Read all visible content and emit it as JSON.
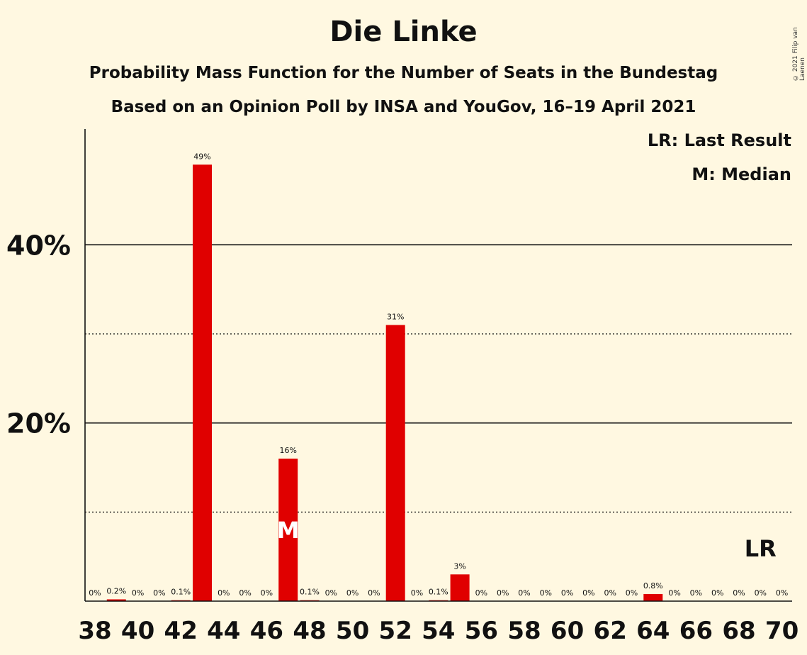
{
  "title": "Die Linke",
  "subtitle1": "Probability Mass Function for the Number of Seats in the Bundestag",
  "subtitle2": "Based on an Opinion Poll by INSA and YouGov, 16–19 April 2021",
  "copyright": "© 2021 Filip van Laenen",
  "legend": {
    "last_result": "LR: Last Result",
    "median": "M: Median"
  },
  "colors": {
    "bar": "#E00000",
    "background": "#FFF8E1",
    "axis": "#111111"
  },
  "chart_data": {
    "type": "bar",
    "title": "Die Linke",
    "xlabel": "",
    "ylabel": "",
    "ylim": [
      0,
      53
    ],
    "y_ticks": [
      {
        "value": 20,
        "label": "20%",
        "style": "solid"
      },
      {
        "value": 40,
        "label": "40%",
        "style": "solid"
      }
    ],
    "y_minor_gridlines": [
      10,
      30
    ],
    "x_tick_labels": [
      "38",
      "40",
      "42",
      "44",
      "46",
      "48",
      "50",
      "52",
      "54",
      "56",
      "58",
      "60",
      "62",
      "64",
      "66",
      "68",
      "70"
    ],
    "categories": [
      38,
      39,
      40,
      41,
      42,
      43,
      44,
      45,
      46,
      47,
      48,
      49,
      50,
      51,
      52,
      53,
      54,
      55,
      56,
      57,
      58,
      59,
      60,
      61,
      62,
      63,
      64,
      65,
      66,
      67,
      68,
      69,
      70
    ],
    "values": [
      0,
      0.2,
      0,
      0,
      0.1,
      49,
      0,
      0,
      0,
      16,
      0.1,
      0,
      0,
      0,
      31,
      0,
      0.1,
      3,
      0,
      0,
      0,
      0,
      0,
      0,
      0,
      0,
      0.8,
      0,
      0,
      0,
      0,
      0,
      0
    ],
    "data_labels": [
      "0%",
      "0.2%",
      "0%",
      "0%",
      "0.1%",
      "49%",
      "0%",
      "0%",
      "0%",
      "16%",
      "0.1%",
      "0%",
      "0%",
      "0%",
      "31%",
      "0%",
      "0.1%",
      "3%",
      "0%",
      "0%",
      "0%",
      "0%",
      "0%",
      "0%",
      "0%",
      "0%",
      "0.8%",
      "0%",
      "0%",
      "0%",
      "0%",
      "0%",
      "0%"
    ],
    "median": {
      "seat": 47,
      "marker": "M"
    },
    "last_result": {
      "seat": 69,
      "marker": "LR"
    }
  }
}
